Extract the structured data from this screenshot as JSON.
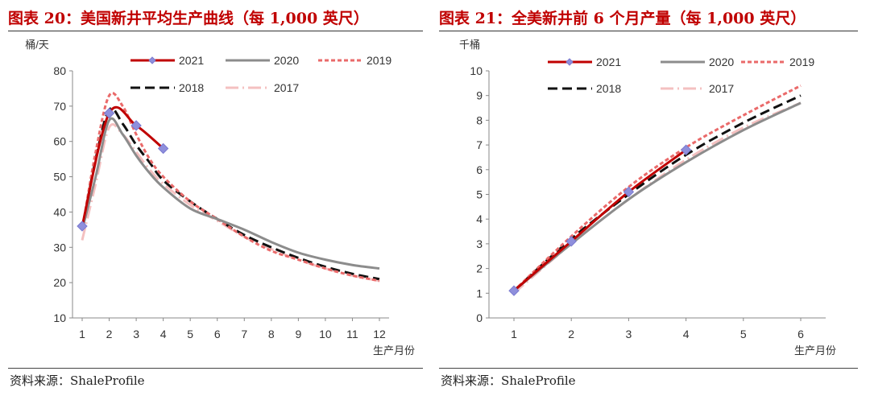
{
  "charts": [
    {
      "title": "图表 20：美国新井平均生产曲线（每 1,000 英尺）",
      "source": "资料来源：ShaleProfile",
      "chart_data": {
        "type": "line",
        "ylabel": "桶/天",
        "xlabel": "生产月份",
        "ylim": [
          10,
          80
        ],
        "yticks": [
          10,
          20,
          30,
          40,
          50,
          60,
          70,
          80
        ],
        "xlim": [
          1,
          12
        ],
        "xticks": [
          1,
          2,
          3,
          4,
          5,
          6,
          7,
          8,
          9,
          10,
          11,
          12
        ],
        "grid": false,
        "legend": "top",
        "series": [
          {
            "name": "2021",
            "color": "#c00000",
            "style": "solid",
            "marker": "diamond",
            "x": [
              1,
              2,
              3,
              4
            ],
            "values": [
              36,
              68,
              64.5,
              58
            ]
          },
          {
            "name": "2020",
            "color": "#8c8c8c",
            "style": "solid",
            "x": [
              1,
              1.5,
              2,
              2.5,
              3,
              3.5,
              4,
              5,
              6,
              7,
              8,
              9,
              10,
              11,
              12
            ],
            "values": [
              35,
              50,
              66,
              62,
              56,
              51,
              47,
              41,
              38,
              35,
              31.5,
              28.5,
              26.5,
              25,
              24
            ]
          },
          {
            "name": "2019",
            "color": "#ea6a6a",
            "style": "dotted",
            "x": [
              1,
              1.5,
              2,
              2.5,
              3,
              3.5,
              4,
              5,
              6,
              7,
              8,
              9,
              10,
              11,
              12
            ],
            "values": [
              35,
              57,
              73,
              70,
              62,
              55,
              50,
              43,
              38,
              33,
              29,
              26.5,
              24,
              22,
              20.5
            ]
          },
          {
            "name": "2018",
            "color": "#111111",
            "style": "dashed",
            "x": [
              1,
              1.5,
              2,
              2.5,
              3,
              3.5,
              4,
              5,
              6,
              7,
              8,
              9,
              10,
              11,
              12
            ],
            "values": [
              35,
              55,
              69,
              65,
              59,
              54,
              49,
              43,
              38,
              33.5,
              30,
              27,
              24.5,
              22.5,
              21
            ]
          },
          {
            "name": "2017",
            "color": "#f4c0c0",
            "style": "dashdot",
            "x": [
              1,
              1.5,
              2,
              2.5,
              3,
              3.5,
              4,
              5,
              6,
              7,
              8,
              9,
              10,
              11,
              12
            ],
            "values": [
              32,
              48,
              64,
              62,
              57,
              52,
              48,
              42,
              37.5,
              33,
              29.5,
              26.5,
              24,
              22,
              20.5
            ]
          }
        ]
      }
    },
    {
      "title": "图表 21：全美新井前 6 个月产量（每 1,000 英尺）",
      "source": "资料来源：ShaleProfile",
      "chart_data": {
        "type": "line",
        "ylabel": "千桶",
        "xlabel": "生产月份",
        "ylim": [
          0,
          10
        ],
        "yticks": [
          0,
          1,
          2,
          3,
          4,
          5,
          6,
          7,
          8,
          9,
          10
        ],
        "xlim": [
          1,
          6
        ],
        "xticks": [
          1,
          2,
          3,
          4,
          5,
          6
        ],
        "grid": false,
        "legend": "top",
        "series": [
          {
            "name": "2021",
            "color": "#c00000",
            "style": "solid",
            "marker": "diamond",
            "x": [
              1,
              2,
              3,
              4
            ],
            "values": [
              1.1,
              3.1,
              5.1,
              6.8
            ]
          },
          {
            "name": "2020",
            "color": "#8c8c8c",
            "style": "solid",
            "x": [
              1,
              2,
              3,
              4,
              5,
              6
            ],
            "values": [
              1.1,
              3.0,
              4.8,
              6.3,
              7.6,
              8.7
            ]
          },
          {
            "name": "2019",
            "color": "#ea6a6a",
            "style": "dotted",
            "x": [
              1,
              2,
              3,
              4,
              5,
              6
            ],
            "values": [
              1.1,
              3.3,
              5.3,
              6.9,
              8.2,
              9.4
            ]
          },
          {
            "name": "2018",
            "color": "#111111",
            "style": "dashed",
            "x": [
              1,
              2,
              3,
              4,
              5,
              6
            ],
            "values": [
              1.1,
              3.2,
              5.0,
              6.6,
              7.9,
              9.0
            ]
          },
          {
            "name": "2017",
            "color": "#f4c0c0",
            "style": "dashdot",
            "x": [
              1,
              2,
              3,
              4,
              5,
              6
            ],
            "values": [
              1.0,
              3.0,
              4.8,
              6.4,
              7.7,
              8.7
            ]
          }
        ]
      }
    }
  ]
}
